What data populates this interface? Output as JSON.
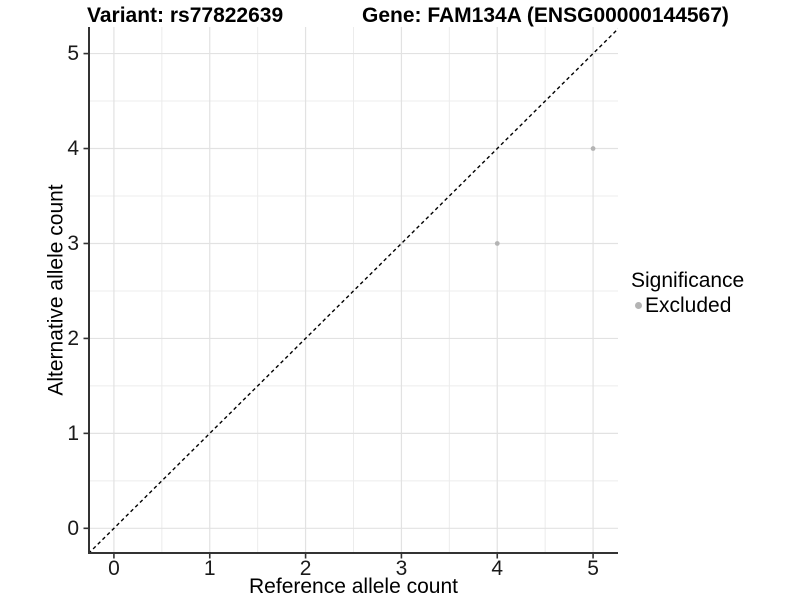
{
  "titles": {
    "left": "Variant: rs77822639",
    "right": "Gene: FAM134A (ENSG00000144567)"
  },
  "chart_data": {
    "type": "scatter",
    "title_left": "Variant: rs77822639",
    "title_right": "Gene: FAM134A (ENSG00000144567)",
    "xlabel": "Reference allele count",
    "ylabel": "Alternative allele count",
    "x_ticks": [
      0,
      1,
      2,
      3,
      4,
      5
    ],
    "y_ticks": [
      0,
      1,
      2,
      3,
      4,
      5
    ],
    "minor_ticks": [
      0.5,
      1.5,
      2.5,
      3.5,
      4.5
    ],
    "xlim": [
      -0.26,
      5.26
    ],
    "ylim": [
      -0.26,
      5.28
    ],
    "grid": true,
    "series": [
      {
        "name": "Excluded",
        "color": "#b4b4b4",
        "points": [
          {
            "x": 4,
            "y": 3
          },
          {
            "x": 5,
            "y": 4
          }
        ]
      }
    ],
    "reference_line": {
      "kind": "identity",
      "style": "dashed",
      "color": "#000000"
    },
    "legend": {
      "title": "Significance",
      "position": "right",
      "items": [
        {
          "label": "Excluded",
          "color": "#b4b4b4"
        }
      ]
    }
  },
  "colors": {
    "background": "#ffffff",
    "grid_major": "#e2e2e2",
    "grid_minor": "#ececec",
    "axis_line": "#333333",
    "point": "#b4b4b4",
    "reference_line": "#000000",
    "text": "#000000"
  }
}
